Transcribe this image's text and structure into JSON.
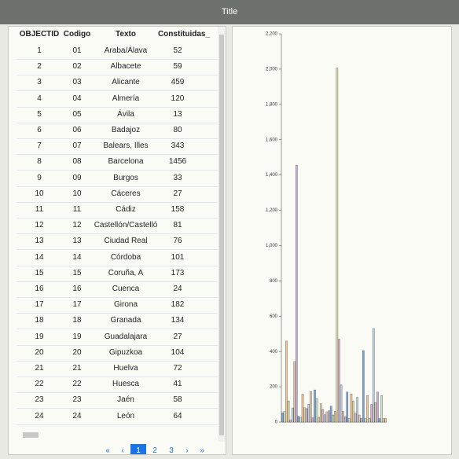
{
  "header": {
    "title": "Title"
  },
  "table": {
    "columns": [
      "OBJECTID",
      "Codigo",
      "Texto",
      "Constituidas_"
    ],
    "rows": [
      [
        1,
        "01",
        "Araba/Álava",
        52
      ],
      [
        2,
        "02",
        "Albacete",
        59
      ],
      [
        3,
        "03",
        "Alicante",
        459
      ],
      [
        4,
        "04",
        "Almería",
        120
      ],
      [
        5,
        "05",
        "Ávila",
        13
      ],
      [
        6,
        "06",
        "Badajoz",
        80
      ],
      [
        7,
        "07",
        "Balears, Illes",
        343
      ],
      [
        8,
        "08",
        "Barcelona",
        1456
      ],
      [
        9,
        "09",
        "Burgos",
        33
      ],
      [
        10,
        "10",
        "Cáceres",
        27
      ],
      [
        11,
        "11",
        "Cádiz",
        158
      ],
      [
        12,
        "12",
        "Castellón/Castelló",
        81
      ],
      [
        13,
        "13",
        "Ciudad Real",
        76
      ],
      [
        14,
        "14",
        "Córdoba",
        101
      ],
      [
        15,
        "15",
        "Coruña, A",
        173
      ],
      [
        16,
        "16",
        "Cuenca",
        24
      ],
      [
        17,
        "17",
        "Girona",
        182
      ],
      [
        18,
        "18",
        "Granada",
        134
      ],
      [
        19,
        "19",
        "Guadalajara",
        27
      ],
      [
        20,
        "20",
        "Gipuzkoa",
        104
      ],
      [
        21,
        "21",
        "Huelva",
        72
      ],
      [
        22,
        "22",
        "Huesca",
        41
      ],
      [
        23,
        "23",
        "Jaén",
        58
      ],
      [
        24,
        "24",
        "León",
        64
      ]
    ]
  },
  "pagination": [
    "«",
    "‹",
    "1",
    "2",
    "3",
    "›",
    "»"
  ],
  "chart_data": {
    "type": "bar",
    "values": [
      52,
      59,
      459,
      120,
      13,
      80,
      343,
      1456,
      33,
      27,
      158,
      81,
      76,
      101,
      173,
      24,
      182,
      134,
      27,
      104,
      72,
      41,
      58,
      64,
      90,
      40,
      60,
      2006,
      470,
      210,
      60,
      30,
      170,
      20,
      160,
      120,
      50,
      140,
      40,
      20,
      405,
      20,
      150,
      20,
      100,
      530,
      110,
      170,
      20,
      150,
      20,
      20
    ],
    "colors": [
      "#7aa6d8",
      "#cfe7c4",
      "#f2c79a",
      "#d9d9a0",
      "#e0b6d8",
      "#bcd3e6",
      "#e7c9a8",
      "#c6b2de"
    ],
    "ylim": [
      0,
      2200
    ],
    "yticks": [
      0,
      200,
      400,
      600,
      800,
      {
        "value": 1000,
        "label": "1,000"
      },
      {
        "value": 1200,
        "label": "1,200"
      },
      {
        "value": 1400,
        "label": "1,400"
      },
      {
        "value": 1600,
        "label": "1,600"
      },
      {
        "value": 1800,
        "label": "1,800"
      },
      {
        "value": 2000,
        "label": "2,000"
      },
      {
        "value": 2200,
        "label": "2,200"
      }
    ]
  }
}
